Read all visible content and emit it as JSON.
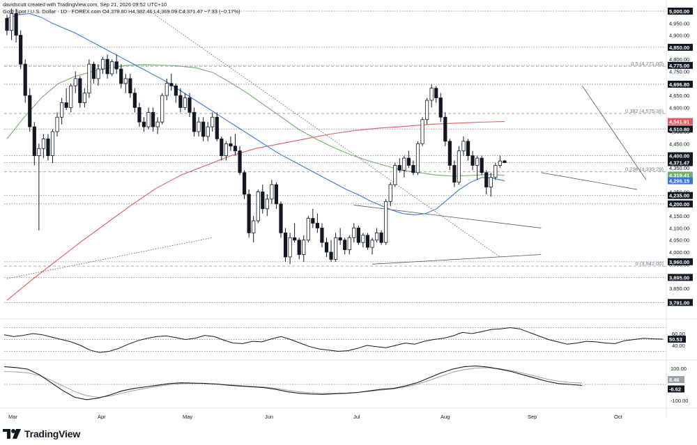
{
  "header": {
    "credit": "davidscutt created with TradingView.com, Sep 21, 2026 09:52 UTC+10",
    "symbol_line": "Gold Spot / U.S. Dollar · 1D · FOREX.com  O4,378.80  H4,382.46  L4,369.09  C4,371.47  −7.33 (−0.17%)"
  },
  "footer": {
    "brand": "TradingView"
  },
  "colors": {
    "up": "#ffffff",
    "down": "#131722",
    "ma_fast": "#3c74e0",
    "ma_mid": "#6fb06a",
    "ma_slow": "#e6595c",
    "grid": "#787b86",
    "tag_bg": "#131722",
    "tag_text": "#ffffff"
  },
  "chart_data": [
    {
      "type": "candlestick",
      "title": "Gold Spot / U.S. Dollar",
      "x_labels": [
        "Mar",
        "Apr",
        "May",
        "Jun",
        "Jul",
        "Aug",
        "Sep",
        "Oct"
      ],
      "y_range": [
        3740,
        5000
      ],
      "y_ticks": [
        3850,
        3900,
        3950,
        4000,
        4050,
        4100,
        4150,
        4250,
        4300,
        4350,
        4450,
        4500,
        4550,
        4600,
        4650,
        4700,
        4750,
        4800,
        4900,
        4950
      ],
      "price_tags": [
        {
          "value": 5000.0,
          "label": "5,000.00",
          "style": "dark"
        },
        {
          "value": 4850.0,
          "label": "4,850.00",
          "style": "dark"
        },
        {
          "value": 4775.0,
          "label": "4,775.00",
          "style": "dark"
        },
        {
          "value": 4696.8,
          "label": "4,696.80",
          "style": "dark"
        },
        {
          "value": 4541.91,
          "label": "4,541.91",
          "style": "red"
        },
        {
          "value": 4510.8,
          "label": "4,510.80",
          "style": "dark"
        },
        {
          "value": 4400.0,
          "label": "4,400.00",
          "style": "dark"
        },
        {
          "value": 4371.47,
          "label": "4,371.47",
          "style": "dark"
        },
        {
          "value": 4319.41,
          "label": "4,319.41",
          "style": "green"
        },
        {
          "value": 4296.15,
          "label": "4,296.15",
          "style": "blue"
        },
        {
          "value": 4235.0,
          "label": "4,235.00",
          "style": "dark"
        },
        {
          "value": 4200.0,
          "label": "4,200.00",
          "style": "dark"
        },
        {
          "value": 3960.0,
          "label": "3,960.00",
          "style": "dark"
        },
        {
          "value": 3895.0,
          "label": "3,895.00",
          "style": "dark"
        },
        {
          "value": 3791.0,
          "label": "3,791.00",
          "style": "dark"
        }
      ],
      "fib_levels": [
        {
          "label": "0.5 (4,771.00)",
          "value": 4771.0
        },
        {
          "label": "0.382 (4,575.36)",
          "value": 4575.36
        },
        {
          "label": "0.236 (4,333.29)",
          "value": 4333.29
        },
        {
          "label": "0 (3,942.00)",
          "value": 3942.0
        }
      ],
      "candles": [
        [
          4970,
          4985,
          4900,
          4920
        ],
        [
          4920,
          5010,
          4880,
          4990
        ],
        [
          4990,
          5010,
          4870,
          4900
        ],
        [
          4900,
          4920,
          4760,
          4780
        ],
        [
          4780,
          4800,
          4620,
          4650
        ],
        [
          4650,
          4680,
          4500,
          4520
        ],
        [
          4520,
          4540,
          4360,
          4400
        ],
        [
          4400,
          4450,
          4090,
          4430
        ],
        [
          4430,
          4490,
          4390,
          4470
        ],
        [
          4470,
          4490,
          4380,
          4400
        ],
        [
          4400,
          4510,
          4370,
          4500
        ],
        [
          4500,
          4580,
          4480,
          4560
        ],
        [
          4560,
          4640,
          4530,
          4620
        ],
        [
          4620,
          4680,
          4590,
          4600
        ],
        [
          4600,
          4700,
          4580,
          4690
        ],
        [
          4690,
          4750,
          4660,
          4720
        ],
        [
          4720,
          4730,
          4600,
          4620
        ],
        [
          4620,
          4680,
          4600,
          4660
        ],
        [
          4660,
          4800,
          4640,
          4780
        ],
        [
          4780,
          4790,
          4700,
          4720
        ],
        [
          4720,
          4780,
          4690,
          4760
        ],
        [
          4760,
          4810,
          4740,
          4800
        ],
        [
          4800,
          4820,
          4720,
          4740
        ],
        [
          4740,
          4800,
          4730,
          4790
        ],
        [
          4790,
          4820,
          4740,
          4760
        ],
        [
          4760,
          4780,
          4680,
          4700
        ],
        [
          4700,
          4740,
          4660,
          4720
        ],
        [
          4720,
          4740,
          4640,
          4660
        ],
        [
          4660,
          4680,
          4580,
          4600
        ],
        [
          4600,
          4620,
          4520,
          4540
        ],
        [
          4540,
          4560,
          4500,
          4520
        ],
        [
          4520,
          4600,
          4510,
          4580
        ],
        [
          4580,
          4600,
          4500,
          4520
        ],
        [
          4520,
          4560,
          4490,
          4540
        ],
        [
          4540,
          4660,
          4530,
          4650
        ],
        [
          4650,
          4720,
          4630,
          4700
        ],
        [
          4700,
          4740,
          4670,
          4690
        ],
        [
          4690,
          4700,
          4620,
          4650
        ],
        [
          4650,
          4680,
          4580,
          4600
        ],
        [
          4600,
          4660,
          4590,
          4640
        ],
        [
          4640,
          4660,
          4560,
          4580
        ],
        [
          4580,
          4600,
          4480,
          4500
        ],
        [
          4500,
          4560,
          4480,
          4540
        ],
        [
          4540,
          4560,
          4460,
          4480
        ],
        [
          4480,
          4540,
          4460,
          4520
        ],
        [
          4520,
          4580,
          4500,
          4560
        ],
        [
          4560,
          4580,
          4460,
          4470
        ],
        [
          4470,
          4480,
          4380,
          4400
        ],
        [
          4400,
          4460,
          4380,
          4450
        ],
        [
          4450,
          4480,
          4420,
          4440
        ],
        [
          4440,
          4490,
          4400,
          4420
        ],
        [
          4420,
          4440,
          4320,
          4330
        ],
        [
          4330,
          4340,
          4220,
          4240
        ],
        [
          4240,
          4260,
          4060,
          4080
        ],
        [
          4080,
          4150,
          4040,
          4130
        ],
        [
          4130,
          4260,
          4120,
          4250
        ],
        [
          4250,
          4280,
          4160,
          4180
        ],
        [
          4180,
          4240,
          4150,
          4220
        ],
        [
          4220,
          4300,
          4200,
          4280
        ],
        [
          4280,
          4290,
          4180,
          4200
        ],
        [
          4200,
          4210,
          4060,
          4080
        ],
        [
          4080,
          4100,
          3960,
          3980
        ],
        [
          3980,
          4080,
          3950,
          4060
        ],
        [
          4060,
          4120,
          4040,
          4050
        ],
        [
          4050,
          4060,
          3970,
          3990
        ],
        [
          3990,
          4070,
          3960,
          4050
        ],
        [
          4050,
          4150,
          4040,
          4140
        ],
        [
          4140,
          4180,
          4100,
          4120
        ],
        [
          4120,
          4160,
          4080,
          4100
        ],
        [
          4100,
          4120,
          4020,
          4040
        ],
        [
          4040,
          4060,
          3980,
          4000
        ],
        [
          4000,
          4050,
          3960,
          3970
        ],
        [
          3970,
          4080,
          3960,
          4060
        ],
        [
          4060,
          4100,
          4030,
          4050
        ],
        [
          4050,
          4060,
          3990,
          4010
        ],
        [
          4010,
          4070,
          3990,
          4060
        ],
        [
          4060,
          4120,
          4040,
          4100
        ],
        [
          4100,
          4110,
          4030,
          4040
        ],
        [
          4040,
          4080,
          4020,
          4070
        ],
        [
          4070,
          4080,
          4010,
          4020
        ],
        [
          4020,
          4060,
          3990,
          4050
        ],
        [
          4050,
          4100,
          4040,
          4080
        ],
        [
          4080,
          4090,
          4030,
          4040
        ],
        [
          4040,
          4220,
          4030,
          4210
        ],
        [
          4210,
          4290,
          4190,
          4280
        ],
        [
          4280,
          4370,
          4270,
          4360
        ],
        [
          4360,
          4390,
          4330,
          4340
        ],
        [
          4340,
          4400,
          4310,
          4390
        ],
        [
          4390,
          4420,
          4350,
          4360
        ],
        [
          4360,
          4380,
          4320,
          4330
        ],
        [
          4330,
          4460,
          4320,
          4450
        ],
        [
          4450,
          4560,
          4440,
          4550
        ],
        [
          4550,
          4640,
          4530,
          4630
        ],
        [
          4630,
          4697,
          4600,
          4680
        ],
        [
          4680,
          4690,
          4620,
          4640
        ],
        [
          4640,
          4660,
          4540,
          4560
        ],
        [
          4560,
          4580,
          4440,
          4460
        ],
        [
          4460,
          4470,
          4340,
          4360
        ],
        [
          4360,
          4380,
          4270,
          4290
        ],
        [
          4290,
          4440,
          4280,
          4420
        ],
        [
          4420,
          4480,
          4400,
          4460
        ],
        [
          4460,
          4470,
          4380,
          4400
        ],
        [
          4400,
          4420,
          4340,
          4360
        ],
        [
          4360,
          4400,
          4300,
          4390
        ],
        [
          4390,
          4400,
          4320,
          4330
        ],
        [
          4330,
          4340,
          4240,
          4270
        ],
        [
          4270,
          4330,
          4230,
          4310
        ],
        [
          4310,
          4370,
          4300,
          4360
        ],
        [
          4360,
          4400,
          4350,
          4378
        ],
        [
          4378.8,
          4382.46,
          4369.09,
          4371.47
        ]
      ],
      "ma_fast": [
        4970,
        4985,
        4990,
        4975,
        4950,
        4930,
        4910,
        4885,
        4860,
        4835,
        4810,
        4785,
        4760,
        4735,
        4710,
        4680,
        4650,
        4620,
        4590,
        4560,
        4530,
        4500,
        4470,
        4440,
        4410,
        4385,
        4360,
        4335,
        4310,
        4285,
        4260,
        4240,
        4215,
        4195,
        4175,
        4160,
        4155,
        4160,
        4180,
        4220,
        4260,
        4290,
        4310,
        4306,
        4296
      ],
      "ma_mid": [
        4470,
        4560,
        4640,
        4700,
        4730,
        4750,
        4765,
        4775,
        4778,
        4776,
        4772,
        4765,
        4745,
        4705,
        4660,
        4610,
        4560,
        4510,
        4470,
        4435,
        4405,
        4380,
        4360,
        4340,
        4330,
        4320,
        4315,
        4318,
        4322,
        4319
      ],
      "ma_slow": [
        3800,
        3885,
        3965,
        4045,
        4120,
        4195,
        4265,
        4320,
        4360,
        4400,
        4430,
        4450,
        4470,
        4490,
        4505,
        4515,
        4522,
        4530,
        4535,
        4539,
        4541.91
      ],
      "trendlines": [
        {
          "style": "dotted",
          "from": [
            0,
            3890
          ],
          "to": [
            45,
            4060
          ]
        },
        {
          "style": "dotted",
          "from": [
            32,
            4990
          ],
          "to": [
            108,
            3980
          ]
        },
        {
          "style": "solid",
          "from": [
            76,
            4195
          ],
          "to": [
            117,
            4100
          ]
        },
        {
          "style": "solid",
          "from": [
            80,
            3950
          ],
          "to": [
            117,
            3990
          ]
        },
        {
          "style": "solid",
          "from": [
            117,
            4330
          ],
          "to": [
            138,
            4260
          ]
        },
        {
          "style": "solid",
          "from": [
            126,
            4690
          ],
          "to": [
            140,
            4300
          ]
        }
      ]
    },
    {
      "type": "line",
      "title": "",
      "y_ticks": [
        40.0,
        60.0
      ],
      "current_tag": "50.53",
      "values": [
        58,
        55,
        57,
        60,
        58,
        54,
        50,
        46,
        40,
        32,
        28,
        30,
        35,
        42,
        48,
        52,
        55,
        56,
        53,
        50,
        52,
        57,
        55,
        49,
        44,
        43,
        47,
        46,
        51,
        55,
        50,
        44,
        38,
        34,
        32,
        30,
        31,
        35,
        40,
        38,
        36,
        40,
        44,
        42,
        47,
        50,
        52,
        56,
        62,
        60,
        63,
        67,
        68,
        70,
        68,
        62,
        56,
        50,
        46,
        42,
        44,
        47,
        46,
        44,
        43,
        48,
        50,
        52,
        51,
        50.53
      ]
    },
    {
      "type": "line",
      "title": "",
      "y_ticks": [
        100.0,
        -100.0
      ],
      "tags": [
        "8.46",
        "-6.62"
      ],
      "values": [
        110,
        105,
        95,
        60,
        10,
        -40,
        -80,
        -95,
        -85,
        -65,
        -40,
        -25,
        -15,
        -5,
        5,
        10,
        8,
        6,
        2,
        -5,
        -10,
        -15,
        -20,
        -30,
        -45,
        -55,
        -60,
        -62,
        -58,
        -55,
        -50,
        -40,
        -30,
        -25,
        -10,
        10,
        40,
        70,
        95,
        110,
        115,
        108,
        95,
        80,
        60,
        40,
        20,
        5,
        0,
        -6.62
      ],
      "signal": [
        80,
        78,
        72,
        55,
        25,
        -10,
        -45,
        -70,
        -80,
        -72,
        -55,
        -38,
        -25,
        -12,
        -2,
        5,
        7,
        6,
        3,
        -2,
        -8,
        -12,
        -16,
        -24,
        -36,
        -46,
        -52,
        -56,
        -56,
        -54,
        -50,
        -43,
        -35,
        -28,
        -16,
        0,
        24,
        50,
        75,
        92,
        102,
        104,
        98,
        86,
        70,
        52,
        34,
        20,
        12,
        8.46
      ]
    }
  ]
}
